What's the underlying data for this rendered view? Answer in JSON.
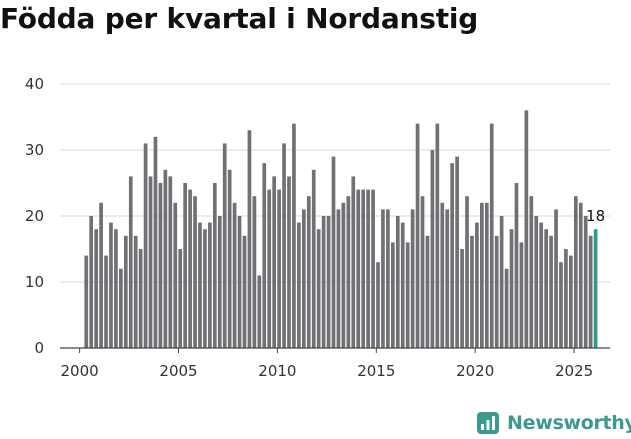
{
  "chart_data": {
    "type": "bar",
    "title": "Födda per kvartal i Nordanstig",
    "xlabel": "",
    "ylabel": "",
    "ylim": [
      0,
      40
    ],
    "yticks": [
      0,
      10,
      20,
      30,
      40
    ],
    "xticks": [
      "2000",
      "2005",
      "2010",
      "2015",
      "2020",
      "2025"
    ],
    "first_period": "2000 Q1",
    "values": [
      14,
      20,
      18,
      22,
      14,
      19,
      18,
      12,
      17,
      26,
      17,
      15,
      31,
      26,
      32,
      25,
      27,
      26,
      22,
      15,
      25,
      24,
      23,
      19,
      18,
      19,
      25,
      20,
      31,
      27,
      22,
      20,
      17,
      33,
      23,
      11,
      28,
      24,
      26,
      24,
      31,
      26,
      34,
      19,
      21,
      23,
      27,
      18,
      20,
      20,
      29,
      21,
      22,
      23,
      26,
      24,
      24,
      24,
      24,
      13,
      21,
      21,
      16,
      20,
      19,
      16,
      21,
      34,
      23,
      17,
      30,
      34,
      22,
      21,
      28,
      29,
      15,
      23,
      17,
      19,
      22,
      22,
      34,
      17,
      20,
      12,
      18,
      25,
      16,
      36,
      23,
      20,
      19,
      18,
      17,
      21,
      13,
      15,
      14,
      23,
      22,
      20,
      17,
      18
    ],
    "highlight_last": true,
    "last_value_label": "18",
    "colors": {
      "bar": "#727075",
      "highlight": "#2f9a91",
      "grid": "#d9d9d9",
      "axis": "#444444"
    }
  },
  "brand": {
    "name": "Newsworthy",
    "icon": "newsworthy-logo-icon",
    "color": "#3a9a8c"
  }
}
